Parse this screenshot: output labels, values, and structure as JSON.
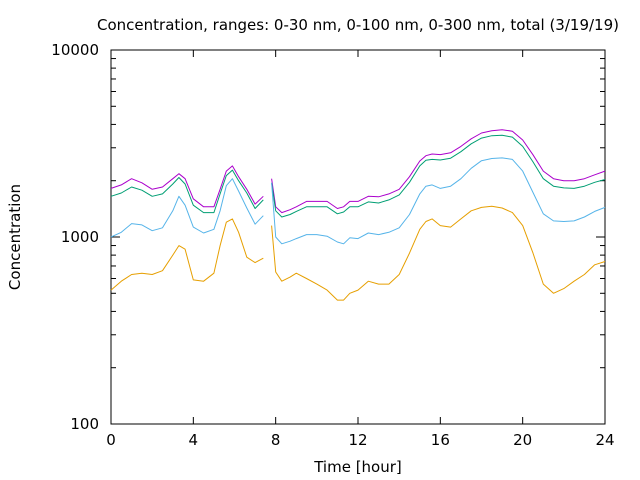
{
  "chart_data": {
    "type": "line",
    "title": "Concentration, ranges: 0-30 nm, 0-100 nm, 0-300 nm, total (3/19/19)",
    "xlabel": "Time [hour]",
    "ylabel": "Concentration",
    "xlim": [
      0,
      24
    ],
    "ylim": [
      100,
      10000
    ],
    "yscale": "log",
    "grid": false,
    "legend": "none",
    "x_ticks": [
      "0",
      "4",
      "8",
      "12",
      "16",
      "20",
      "24"
    ],
    "y_ticks": [
      "100",
      "1000",
      "10000"
    ],
    "x": [
      0,
      0.5,
      1,
      1.5,
      2,
      2.5,
      3,
      3.3,
      3.6,
      4,
      4.5,
      5,
      5.3,
      5.6,
      5.9,
      6.2,
      6.6,
      7,
      7.4,
      7.8,
      8,
      8.3,
      8.7,
      9,
      9.5,
      10,
      10.5,
      11,
      11.3,
      11.6,
      12,
      12.5,
      13,
      13.5,
      14,
      14.5,
      15,
      15.3,
      15.6,
      16,
      16.5,
      17,
      17.5,
      18,
      18.5,
      19,
      19.5,
      20,
      20.5,
      21,
      21.5,
      22,
      22.5,
      23,
      23.5,
      24
    ],
    "gap_after_x": 7.4,
    "series": [
      {
        "color": "#aa00cc",
        "values": [
          1820,
          1900,
          2050,
          1950,
          1800,
          1850,
          2050,
          2180,
          2050,
          1600,
          1450,
          1450,
          1800,
          2250,
          2400,
          2100,
          1800,
          1500,
          1650,
          2050,
          1450,
          1350,
          1400,
          1450,
          1550,
          1550,
          1550,
          1420,
          1450,
          1550,
          1550,
          1650,
          1640,
          1700,
          1800,
          2100,
          2550,
          2720,
          2780,
          2760,
          2820,
          3050,
          3350,
          3600,
          3700,
          3750,
          3680,
          3300,
          2750,
          2250,
          2050,
          2000,
          2000,
          2050,
          2150,
          2250
        ]
      },
      {
        "color": "#009e73",
        "values": [
          1650,
          1720,
          1850,
          1780,
          1650,
          1700,
          1920,
          2080,
          1920,
          1480,
          1350,
          1350,
          1700,
          2130,
          2280,
          2000,
          1720,
          1420,
          1580,
          1950,
          1380,
          1280,
          1320,
          1370,
          1450,
          1450,
          1450,
          1330,
          1360,
          1450,
          1450,
          1540,
          1520,
          1580,
          1680,
          1960,
          2400,
          2570,
          2600,
          2580,
          2640,
          2860,
          3150,
          3380,
          3480,
          3500,
          3420,
          3050,
          2520,
          2050,
          1870,
          1830,
          1820,
          1870,
          1960,
          2030
        ]
      },
      {
        "color": "#56b4e9",
        "values": [
          1000,
          1060,
          1180,
          1160,
          1080,
          1120,
          1380,
          1650,
          1480,
          1130,
          1050,
          1100,
          1380,
          1880,
          2050,
          1760,
          1430,
          1170,
          1300,
          1950,
          1000,
          920,
          950,
          980,
          1030,
          1030,
          1010,
          940,
          920,
          990,
          980,
          1050,
          1030,
          1060,
          1120,
          1320,
          1700,
          1870,
          1900,
          1820,
          1870,
          2050,
          2330,
          2560,
          2630,
          2650,
          2600,
          2250,
          1730,
          1330,
          1220,
          1210,
          1220,
          1280,
          1370,
          1440
        ]
      },
      {
        "color": "#e69f00",
        "values": [
          520,
          580,
          630,
          640,
          630,
          660,
          800,
          900,
          860,
          590,
          580,
          640,
          900,
          1200,
          1250,
          1060,
          780,
          730,
          770,
          1150,
          650,
          580,
          610,
          640,
          600,
          560,
          520,
          460,
          460,
          500,
          520,
          580,
          560,
          560,
          630,
          820,
          1100,
          1210,
          1250,
          1150,
          1130,
          1250,
          1380,
          1440,
          1460,
          1430,
          1350,
          1150,
          820,
          560,
          500,
          530,
          580,
          630,
          710,
          740
        ]
      }
    ]
  }
}
